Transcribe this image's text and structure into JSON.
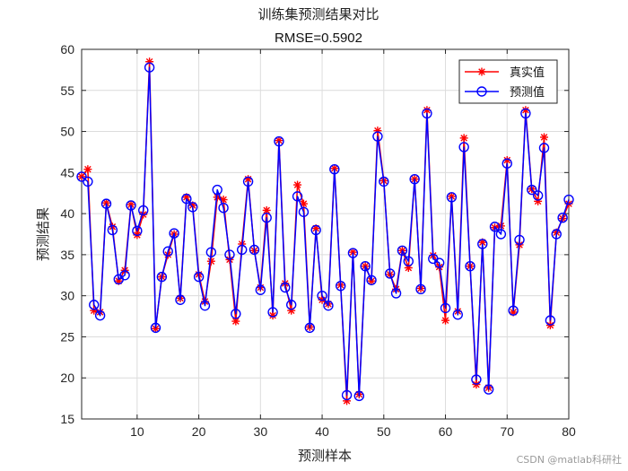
{
  "chart_data": {
    "type": "line",
    "title": "训练集预测结果对比",
    "subtitle": "RMSE=0.5902",
    "xlabel": "预测样本",
    "ylabel": "预测结果",
    "xlim": [
      1,
      80
    ],
    "ylim": [
      15,
      60
    ],
    "xticks": [
      10,
      20,
      30,
      40,
      50,
      60,
      70,
      80
    ],
    "yticks": [
      15,
      20,
      25,
      30,
      35,
      40,
      45,
      50,
      55,
      60
    ],
    "grid": true,
    "legend_position": "top-right",
    "series": [
      {
        "name": "真实值",
        "color": "#ff0000",
        "marker": "asterisk",
        "x": [
          1,
          2,
          3,
          4,
          5,
          6,
          7,
          8,
          9,
          10,
          11,
          12,
          13,
          14,
          15,
          16,
          17,
          18,
          19,
          20,
          21,
          22,
          23,
          24,
          25,
          26,
          27,
          28,
          29,
          30,
          31,
          32,
          33,
          34,
          35,
          36,
          37,
          38,
          39,
          40,
          41,
          42,
          43,
          44,
          45,
          46,
          47,
          48,
          49,
          50,
          51,
          52,
          53,
          54,
          55,
          56,
          57,
          58,
          59,
          60,
          61,
          62,
          63,
          64,
          65,
          66,
          67,
          68,
          69,
          70,
          71,
          72,
          73,
          74,
          75,
          76,
          77,
          78,
          79,
          80
        ],
        "values": [
          44.5,
          45.4,
          28.2,
          28.0,
          41.3,
          38.4,
          31.8,
          33.1,
          41.1,
          37.4,
          39.9,
          58.5,
          26.0,
          32.3,
          35.0,
          37.5,
          29.7,
          42.0,
          41.0,
          32.6,
          29.3,
          34.2,
          42.0,
          41.7,
          34.4,
          26.9,
          36.3,
          44.2,
          35.5,
          31.0,
          40.4,
          27.6,
          48.9,
          31.5,
          28.2,
          43.5,
          41.2,
          26.2,
          38.2,
          29.5,
          29.0,
          45.5,
          31.3,
          17.2,
          35.3,
          18.0,
          33.6,
          31.8,
          50.1,
          44.0,
          32.6,
          30.8,
          35.5,
          33.4,
          44.2,
          30.9,
          52.6,
          34.9,
          33.5,
          27.0,
          42.1,
          28.1,
          49.2,
          33.6,
          19.2,
          36.5,
          18.8,
          38.3,
          38.5,
          46.5,
          28.0,
          36.2,
          52.6,
          43.0,
          41.5,
          49.3,
          26.4,
          37.7,
          39.4,
          41.2
        ]
      },
      {
        "name": "预测值",
        "color": "#0000ff",
        "marker": "circle",
        "x": [
          1,
          2,
          3,
          4,
          5,
          6,
          7,
          8,
          9,
          10,
          11,
          12,
          13,
          14,
          15,
          16,
          17,
          18,
          19,
          20,
          21,
          22,
          23,
          24,
          25,
          26,
          27,
          28,
          29,
          30,
          31,
          32,
          33,
          34,
          35,
          36,
          37,
          38,
          39,
          40,
          41,
          42,
          43,
          44,
          45,
          46,
          47,
          48,
          49,
          50,
          51,
          52,
          53,
          54,
          55,
          56,
          57,
          58,
          59,
          60,
          61,
          62,
          63,
          64,
          65,
          66,
          67,
          68,
          69,
          70,
          71,
          72,
          73,
          74,
          75,
          76,
          77,
          78,
          79,
          80
        ],
        "values": [
          44.5,
          43.9,
          28.9,
          27.6,
          41.2,
          38.0,
          32.0,
          32.5,
          41.0,
          37.9,
          40.4,
          57.8,
          26.1,
          32.3,
          35.4,
          37.6,
          29.5,
          41.8,
          40.8,
          32.3,
          28.8,
          35.3,
          42.9,
          40.7,
          35.0,
          27.8,
          35.6,
          43.9,
          35.6,
          30.7,
          39.5,
          28.0,
          48.8,
          31.0,
          28.9,
          42.1,
          40.2,
          26.1,
          38.0,
          30.0,
          28.8,
          45.4,
          31.2,
          17.9,
          35.2,
          17.8,
          33.6,
          31.9,
          49.4,
          43.9,
          32.7,
          30.3,
          35.5,
          34.2,
          44.2,
          30.8,
          52.2,
          34.5,
          34.0,
          28.5,
          42.0,
          27.7,
          48.1,
          33.6,
          19.8,
          36.3,
          18.6,
          38.4,
          37.5,
          46.1,
          28.2,
          36.8,
          52.2,
          42.9,
          42.2,
          48.0,
          27.0,
          37.5,
          39.5,
          41.7
        ]
      }
    ]
  },
  "watermark": "CSDN @matlab科研社"
}
